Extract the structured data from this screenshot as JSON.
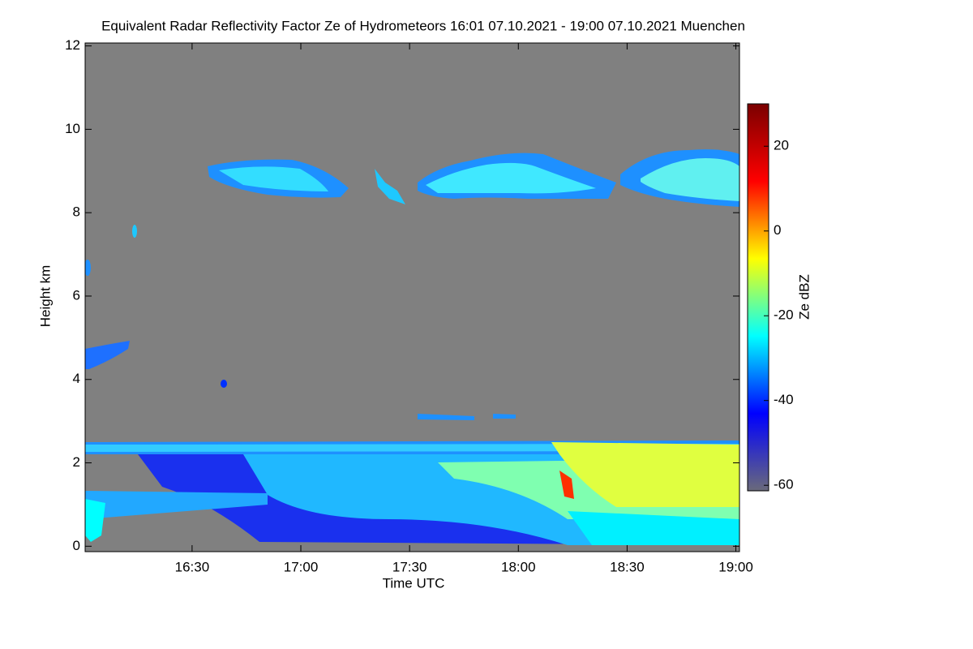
{
  "chart_data": {
    "type": "heatmap",
    "title": "Equivalent Radar Reflectivity Factor Ze of Hydrometeors   16:01 07.10.2021 - 19:00 07.10.2021 Muenchen",
    "xlabel": "Time UTC",
    "ylabel": "Height km",
    "colorbar_label": "Ze dBZ",
    "xlim": [
      960.5,
      1141
    ],
    "xticks": [
      {
        "value": 990,
        "label": "16:30"
      },
      {
        "value": 1020,
        "label": "17:00"
      },
      {
        "value": 1050,
        "label": "17:30"
      },
      {
        "value": 1080,
        "label": "18:00"
      },
      {
        "value": 1110,
        "label": "18:30"
      },
      {
        "value": 1140,
        "label": "19:00"
      }
    ],
    "ylim": [
      -0.13,
      12.07
    ],
    "yticks": [
      0,
      2,
      4,
      6,
      8,
      10,
      12
    ],
    "zlim": [
      -61.3,
      30
    ],
    "zticks": [
      20,
      0,
      -20,
      -40,
      -60
    ],
    "colormap": [
      "#6a6a7a",
      "#0000ff",
      "#00ffff",
      "#ffff00",
      "#ff0000",
      "#7a0000"
    ],
    "background": "#808080"
  }
}
